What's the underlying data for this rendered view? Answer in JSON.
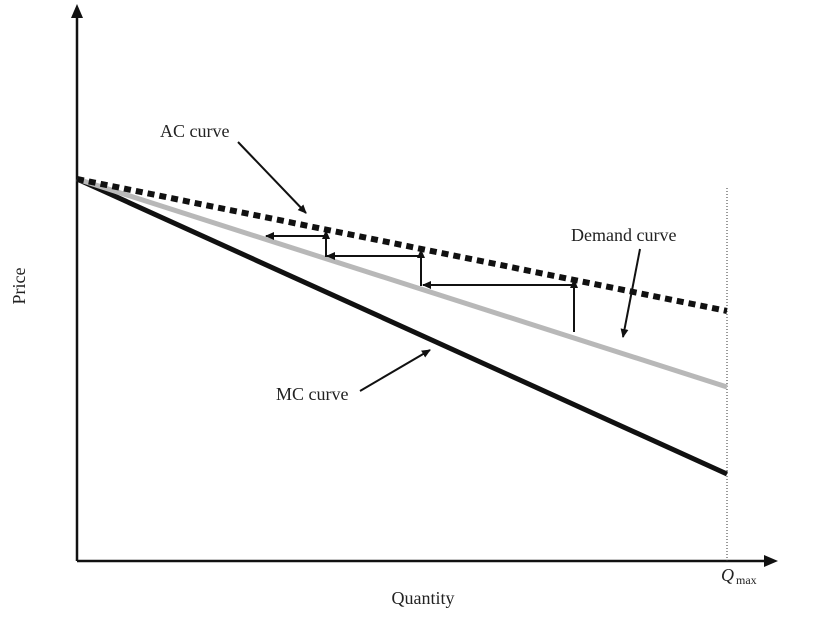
{
  "diagram": {
    "axes": {
      "x_label": "Quantity",
      "y_label": "Price",
      "q_max": {
        "main": "Q",
        "sub": "max"
      }
    },
    "curve_labels": {
      "ac": "AC curve",
      "demand": "Demand curve",
      "mc": "MC curve"
    },
    "colors": {
      "ac_curve": "#111111",
      "demand_curve": "#b8b8b8",
      "mc_curve": "#111111",
      "arrows": "#111111",
      "axes": "#111111"
    },
    "line_styles": {
      "ac_curve": "dashed",
      "demand_curve": "solid-gray",
      "mc_curve": "solid"
    }
  }
}
